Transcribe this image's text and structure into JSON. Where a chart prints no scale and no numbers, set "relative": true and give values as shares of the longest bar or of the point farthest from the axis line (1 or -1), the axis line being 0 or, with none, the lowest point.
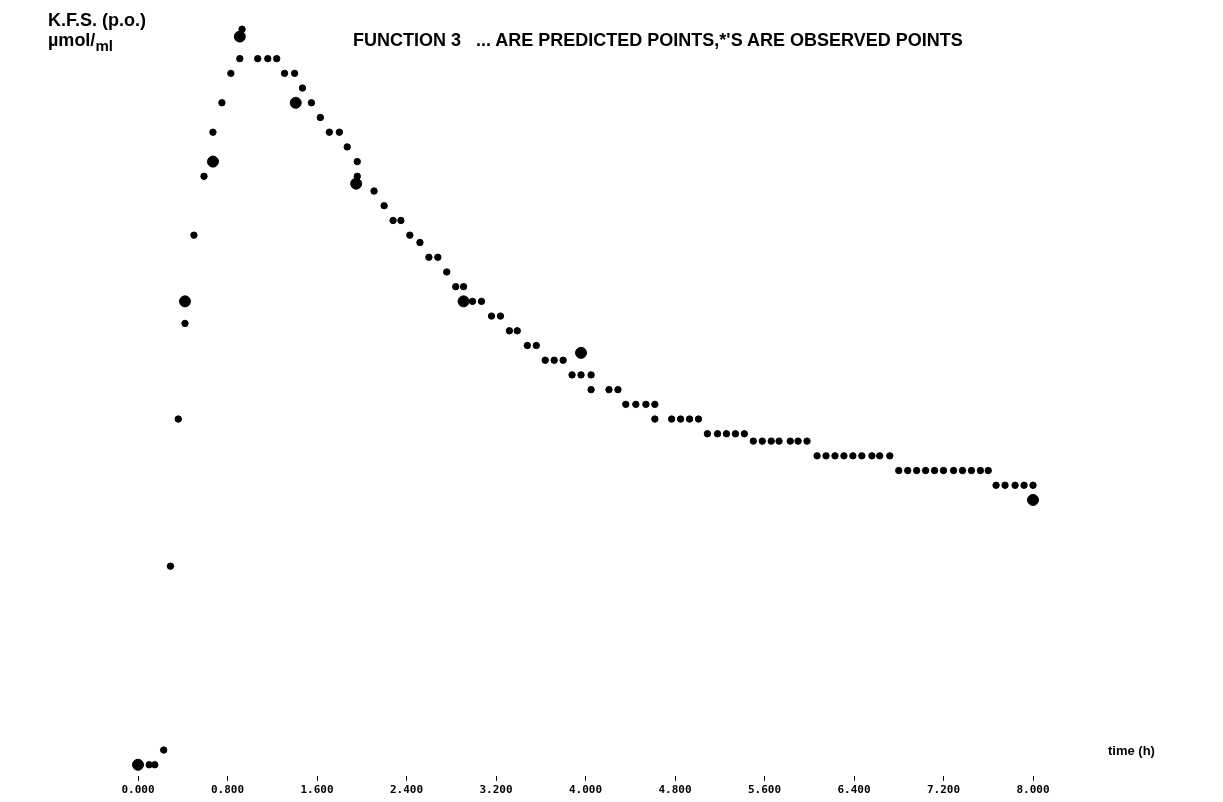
{
  "chart_data": {
    "type": "scatter",
    "title": "FUNCTION 3   ... ARE PREDICTED POINTS,*'S ARE OBSERVED POINTS",
    "ylabel": "K.F.S. (p.o.) µmol/$_{ml}$",
    "xlabel": "time (h)",
    "relative": true,
    "xlim": [
      0,
      8
    ],
    "xticks": [
      {
        "value": 0,
        "label": "0.000"
      },
      {
        "value": 0.8,
        "label": "0.800"
      },
      {
        "value": 1.6,
        "label": "1.600"
      },
      {
        "value": 2.4,
        "label": "2.400"
      },
      {
        "value": 3.2,
        "label": "3.200"
      },
      {
        "value": 4.0,
        "label": "4.000"
      },
      {
        "value": 4.8,
        "label": "4.800"
      },
      {
        "value": 5.6,
        "label": "5.600"
      },
      {
        "value": 6.4,
        "label": "6.400"
      },
      {
        "value": 7.2,
        "label": "7.200"
      },
      {
        "value": 8.0,
        "label": "8.000"
      }
    ],
    "grid": false,
    "legend": false,
    "marker": "circle",
    "series": [
      {
        "color": "#000000",
        "x": [
          0.1,
          0.15,
          0.23,
          0.29,
          0.36,
          0.42,
          0.5,
          0.59,
          0.67,
          0.75,
          0.83,
          0.91,
          0.93,
          1.07,
          1.16,
          1.24,
          1.31,
          1.4,
          1.47,
          1.55,
          1.63,
          1.71,
          1.8,
          1.87,
          1.96,
          1.96,
          2.11,
          2.2,
          2.28,
          2.35,
          2.43,
          2.52,
          2.6,
          2.68,
          2.76,
          2.84,
          2.91,
          2.99,
          3.07,
          3.16,
          3.24,
          3.32,
          3.39,
          3.48,
          3.56,
          3.64,
          3.72,
          3.8,
          3.88,
          3.96,
          4.05,
          4.05,
          4.21,
          4.29,
          4.36,
          4.45,
          4.54,
          4.62,
          4.62,
          4.77,
          4.85,
          4.93,
          5.01,
          5.09,
          5.18,
          5.26,
          5.34,
          5.42,
          5.5,
          5.58,
          5.66,
          5.73,
          5.83,
          5.9,
          5.98,
          6.07,
          6.15,
          6.23,
          6.31,
          6.39,
          6.47,
          6.56,
          6.63,
          6.72,
          6.8,
          6.88,
          6.96,
          7.04,
          7.12,
          7.2,
          7.29,
          7.37,
          7.45,
          7.53,
          7.6,
          7.67,
          7.75,
          7.84,
          7.92,
          8.0
        ],
        "values": [
          0,
          0,
          0.02,
          0.27,
          0.47,
          0.6,
          0.72,
          0.8,
          0.86,
          0.9,
          0.94,
          0.96,
          1.0,
          0.96,
          0.96,
          0.96,
          0.94,
          0.94,
          0.92,
          0.9,
          0.88,
          0.86,
          0.86,
          0.84,
          0.82,
          0.8,
          0.78,
          0.76,
          0.74,
          0.74,
          0.72,
          0.71,
          0.69,
          0.69,
          0.67,
          0.65,
          0.65,
          0.63,
          0.63,
          0.61,
          0.61,
          0.59,
          0.59,
          0.57,
          0.57,
          0.55,
          0.55,
          0.55,
          0.53,
          0.53,
          0.53,
          0.51,
          0.51,
          0.51,
          0.49,
          0.49,
          0.49,
          0.49,
          0.47,
          0.47,
          0.47,
          0.47,
          0.47,
          0.45,
          0.45,
          0.45,
          0.45,
          0.45,
          0.44,
          0.44,
          0.44,
          0.44,
          0.44,
          0.44,
          0.44,
          0.42,
          0.42,
          0.42,
          0.42,
          0.42,
          0.42,
          0.42,
          0.42,
          0.42,
          0.4,
          0.4,
          0.4,
          0.4,
          0.4,
          0.4,
          0.4,
          0.4,
          0.4,
          0.4,
          0.4,
          0.38,
          0.38,
          0.38,
          0.38,
          0.38
        ]
      },
      {
        "color": "#000000",
        "x": [
          0.0,
          0.42,
          0.67,
          0.91,
          1.41,
          1.95,
          2.91,
          3.96,
          8.0
        ],
        "values": [
          0,
          0.63,
          0.82,
          0.99,
          0.9,
          0.79,
          0.63,
          0.56,
          0.36
        ]
      }
    ]
  }
}
